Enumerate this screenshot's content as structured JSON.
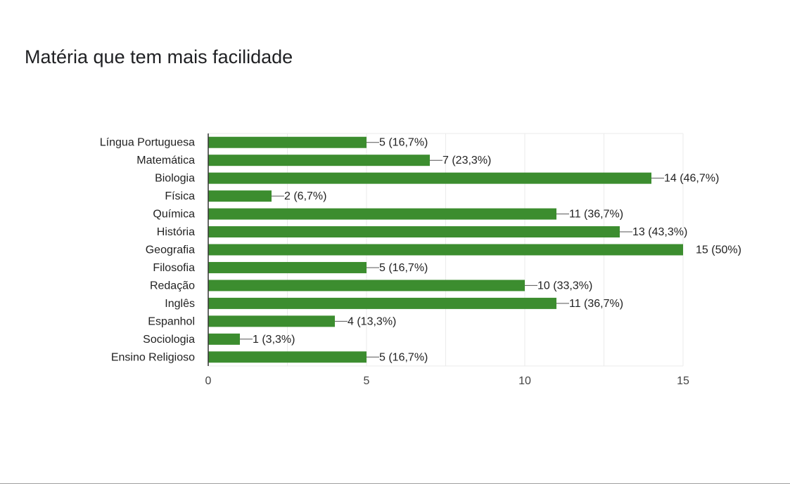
{
  "title": "Matéria que tem mais facilidade",
  "chart_data": {
    "type": "bar",
    "orientation": "horizontal",
    "categories": [
      "Língua Portuguesa",
      "Matemática",
      "Biologia",
      "Física",
      "Química",
      "História",
      "Geografia",
      "Filosofia",
      "Redação",
      "Inglês",
      "Espanhol",
      "Sociologia",
      "Ensino Religioso"
    ],
    "values": [
      5,
      7,
      14,
      2,
      11,
      13,
      15,
      5,
      10,
      11,
      4,
      1,
      5
    ],
    "data_labels": [
      "5 (16,7%)",
      "7 (23,3%)",
      "14 (46,7%)",
      "2 (6,7%)",
      "11 (36,7%)",
      "13 (43,3%)",
      "15 (50%)",
      "5 (16,7%)",
      "10 (33,3%)",
      "11 (36,7%)",
      "4 (13,3%)",
      "1 (3,3%)",
      "5 (16,7%)"
    ],
    "xlim": [
      0,
      15
    ],
    "xticks": [
      "0",
      "5",
      "10",
      "15"
    ],
    "xtick_values": [
      0,
      5,
      10,
      15
    ],
    "grid": true,
    "colors": {
      "bar": "#3c8d2f",
      "grid": "#ebebeb",
      "axis": "#333333",
      "text": "#222222",
      "tick": "#444444"
    }
  }
}
